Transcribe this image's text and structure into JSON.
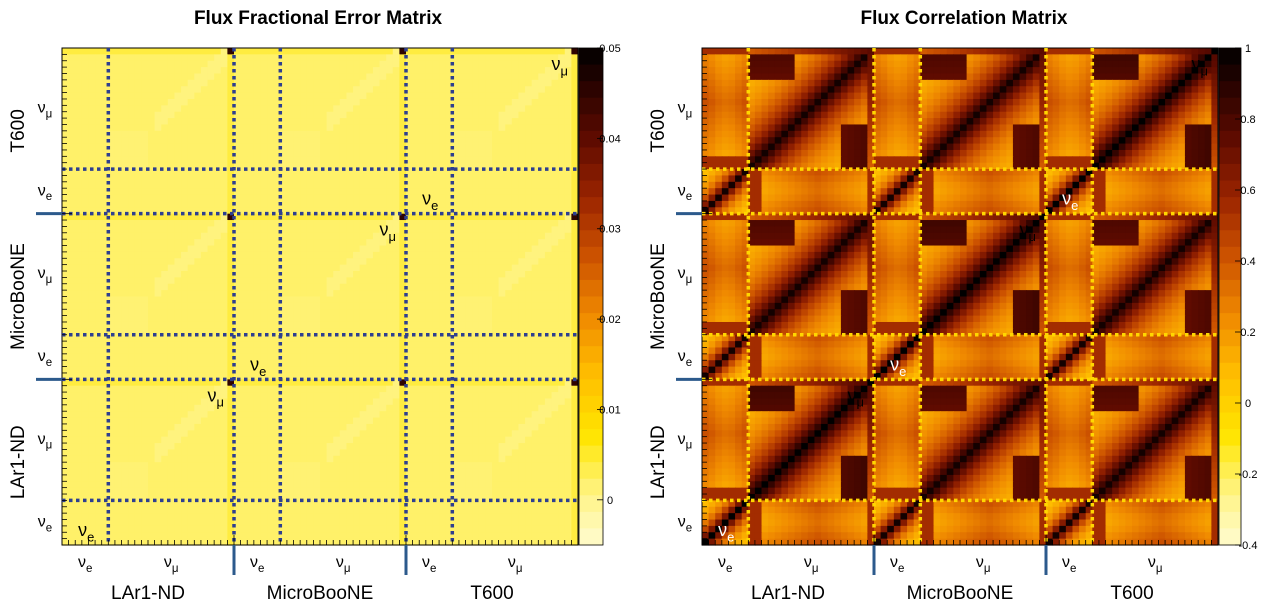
{
  "chart_data": [
    {
      "type": "heatmap",
      "title": "Flux Fractional Error Matrix",
      "detectors": [
        "LAr1-ND",
        "MicroBooNE",
        "T600"
      ],
      "flavors": [
        "ν_e",
        "ν_μ"
      ],
      "flavor_labels": {
        "nu_e": "ν",
        "nu_e_sub": "e",
        "nu_mu": "ν",
        "nu_mu_sub": "μ"
      },
      "bins": {
        "nu_e": 7,
        "nu_mu": 19
      },
      "colorbar": {
        "min": -0.005,
        "max": 0.05,
        "ticks": [
          0,
          0.01,
          0.02,
          0.03,
          0.04,
          0.05
        ],
        "tick_labels": [
          "0",
          "0.01",
          "0.02",
          "0.03",
          "0.04",
          "0.05"
        ]
      },
      "typical_value": 0.002,
      "peak_value": 0.045,
      "dotted_line_color": "#2e3f8f"
    },
    {
      "type": "heatmap",
      "title": "Flux Correlation Matrix",
      "detectors": [
        "LAr1-ND",
        "MicroBooNE",
        "T600"
      ],
      "flavors": [
        "ν_e",
        "ν_μ"
      ],
      "flavor_labels": {
        "nu_e": "ν",
        "nu_e_sub": "e",
        "nu_mu": "ν",
        "nu_mu_sub": "μ"
      },
      "bins": {
        "nu_e": 7,
        "nu_mu": 19
      },
      "colorbar": {
        "min": -0.4,
        "max": 1,
        "ticks": [
          -0.4,
          -0.2,
          0,
          0.2,
          0.4,
          0.6,
          0.8,
          1
        ],
        "tick_labels": [
          "-0.4",
          "-0.2",
          "0",
          "0.2",
          "0.4",
          "0.6",
          "0.8",
          "1"
        ]
      },
      "diagonal_value": 1,
      "dotted_line_color": "#ffd700"
    }
  ]
}
